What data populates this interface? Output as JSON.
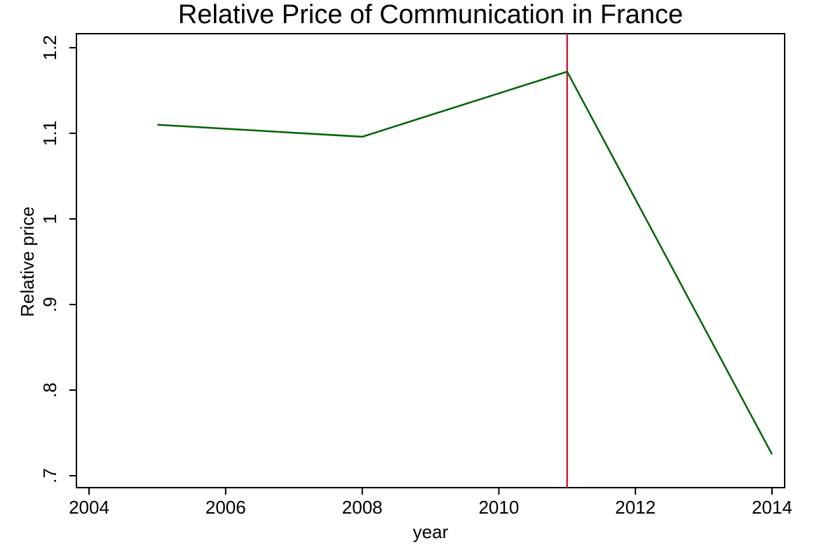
{
  "chart_data": {
    "type": "line",
    "title": "Relative Price of Communication in France",
    "xlabel": "year",
    "ylabel": "Relative price",
    "xlim": [
      2004,
      2014
    ],
    "ylim": [
      0.7,
      1.2
    ],
    "x_ticks": [
      2004,
      2006,
      2008,
      2010,
      2012,
      2014
    ],
    "x_tick_labels": [
      "2004",
      "2006",
      "2008",
      "2010",
      "2012",
      "2014"
    ],
    "y_ticks": [
      0.7,
      0.8,
      0.9,
      1.0,
      1.1,
      1.2
    ],
    "y_tick_labels": [
      ".7",
      ".8",
      ".9",
      "1",
      "1.1",
      "1.2"
    ],
    "grid": false,
    "series": [
      {
        "x": [
          2005,
          2008,
          2011,
          2014
        ],
        "values": [
          1.11,
          1.096,
          1.172,
          0.725
        ],
        "color": "#006400"
      }
    ],
    "reference_lines": [
      {
        "axis": "x",
        "value": 2011,
        "color": "#cc1f3a"
      }
    ]
  }
}
